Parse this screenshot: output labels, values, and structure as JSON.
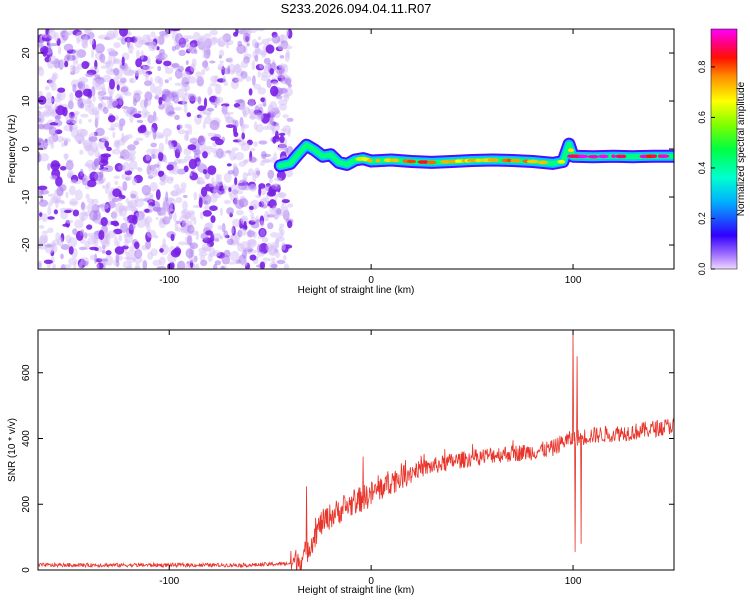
{
  "title": "S233.2026.094.04.11.R07",
  "colors": {
    "axis": "#000000",
    "snr_line": "#e8342a",
    "spectrum_ridge": "#ff2a00"
  },
  "chart_data": [
    {
      "type": "heatmap",
      "name": "spectrogram",
      "xlabel": "Height of straight line (km)",
      "ylabel": "Frequency (Hz)",
      "xlim": [
        -165,
        150
      ],
      "ylim": [
        -25,
        25
      ],
      "x_ticks": [
        -100,
        0,
        100
      ],
      "x_tick_labels": [
        "-100",
        "0",
        "100"
      ],
      "y_ticks": [
        -20,
        -10,
        0,
        10,
        20
      ],
      "y_tick_labels": [
        "-20",
        "-10",
        "0",
        "10",
        "20"
      ],
      "noise_region_x": [
        -165,
        -40
      ],
      "ridge": {
        "x": [
          -45,
          -40,
          -36,
          -32,
          -28,
          -24,
          -20,
          -16,
          -12,
          -8,
          -4,
          0,
          10,
          20,
          30,
          40,
          50,
          60,
          70,
          80,
          90,
          95,
          98,
          100,
          110,
          120,
          130,
          140,
          150
        ],
        "freq": [
          -3.5,
          -3,
          -1,
          0.8,
          -0.2,
          -1.5,
          -1.2,
          -2.8,
          -3.2,
          -2.3,
          -2,
          -2.5,
          -2.3,
          -2.6,
          -2.8,
          -2.6,
          -2.4,
          -2.3,
          -2.4,
          -2.6,
          -3,
          -2.6,
          1,
          -1.5,
          -1.6,
          -1.5,
          -1.6,
          -1.5,
          -1.5
        ],
        "amplitude": [
          0.4,
          0.5,
          0.6,
          0.5,
          0.6,
          0.5,
          0.5,
          0.45,
          0.55,
          0.6,
          0.65,
          0.7,
          0.75,
          0.85,
          0.8,
          0.75,
          0.7,
          0.75,
          0.8,
          0.75,
          0.65,
          0.6,
          0.4,
          0.9,
          0.95,
          0.95,
          0.95,
          0.9,
          0.9
        ]
      },
      "colorbar": {
        "label": "Normalized spectral amplitude",
        "range": [
          0.0,
          0.95
        ],
        "ticks": [
          0.0,
          0.2,
          0.4,
          0.6,
          0.8
        ],
        "tick_labels": [
          "0.0",
          "0.2",
          "0.4",
          "0.6",
          "0.8"
        ]
      }
    },
    {
      "type": "line",
      "name": "snr",
      "xlabel": "Height of straight line (km)",
      "ylabel": "SNR (10 * v/v)",
      "xlim": [
        -165,
        150
      ],
      "ylim": [
        0,
        730
      ],
      "x_ticks": [
        -100,
        0,
        100
      ],
      "x_tick_labels": [
        "-100",
        "0",
        "100"
      ],
      "y_ticks": [
        0,
        200,
        400,
        600
      ],
      "y_tick_labels": [
        "0",
        "200",
        "400",
        "600"
      ],
      "envelope": {
        "x": [
          -165,
          -60,
          -40,
          -34,
          -30,
          -25,
          -20,
          -10,
          0,
          10,
          20,
          30,
          40,
          50,
          60,
          70,
          80,
          90,
          95,
          100,
          110,
          120,
          130,
          140,
          150
        ],
        "y": [
          15,
          15,
          20,
          35,
          80,
          140,
          165,
          200,
          230,
          270,
          300,
          315,
          330,
          340,
          350,
          355,
          360,
          370,
          390,
          400,
          410,
          415,
          420,
          430,
          440
        ]
      },
      "spikes": [
        {
          "x": -32,
          "y": 255
        },
        {
          "x": -4,
          "y": 345
        },
        {
          "x": 100,
          "y": 730
        },
        {
          "x": 101,
          "y": 55
        },
        {
          "x": 102,
          "y": 650
        },
        {
          "x": 104,
          "y": 80
        }
      ]
    }
  ]
}
